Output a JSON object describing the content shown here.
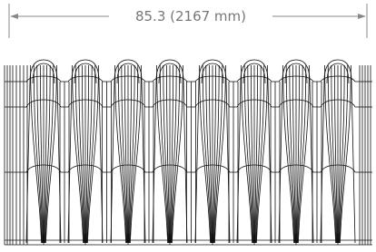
{
  "dimension": {
    "label": "85.3 (2167 mm)"
  }
}
